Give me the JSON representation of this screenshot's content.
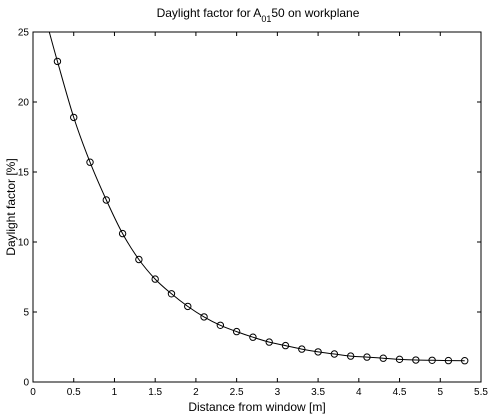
{
  "chart_data": {
    "type": "line",
    "title": {
      "prefix": "Daylight factor for A",
      "subscript": "01",
      "suffix": "50 on workplane"
    },
    "xlabel": "Distance from window [m]",
    "ylabel": "Daylight factor [%]",
    "xlim": [
      0,
      5.5
    ],
    "ylim": [
      0,
      25
    ],
    "xticks": [
      0,
      0.5,
      1,
      1.5,
      2,
      2.5,
      3,
      3.5,
      4,
      4.5,
      5,
      5.5
    ],
    "xtick_labels": [
      "0",
      "0.5",
      "1",
      "1.5",
      "2",
      "2.5",
      "3",
      "3.5",
      "4",
      "4.5",
      "5",
      "5.5"
    ],
    "yticks": [
      0,
      5,
      10,
      15,
      20,
      25
    ],
    "ytick_labels": [
      "0",
      "5",
      "10",
      "15",
      "20",
      "25"
    ],
    "grid": false,
    "legend": "none",
    "series": [
      {
        "marker": "circle",
        "line_color": "#000000",
        "x": [
          0.3,
          0.5,
          0.7,
          0.9,
          1.1,
          1.3,
          1.5,
          1.7,
          1.9,
          2.1,
          2.3,
          2.5,
          2.7,
          2.9,
          3.1,
          3.3,
          3.5,
          3.7,
          3.9,
          4.1,
          4.3,
          4.5,
          4.7,
          4.9,
          5.1,
          5.3
        ],
        "y": [
          22.9,
          18.9,
          15.7,
          13.0,
          10.6,
          8.75,
          7.35,
          6.3,
          5.4,
          4.65,
          4.05,
          3.6,
          3.2,
          2.85,
          2.6,
          2.35,
          2.15,
          2.0,
          1.85,
          1.78,
          1.7,
          1.62,
          1.57,
          1.55,
          1.53,
          1.52
        ]
      }
    ],
    "curve_start": {
      "x": 0.2,
      "y": 25.3
    }
  }
}
